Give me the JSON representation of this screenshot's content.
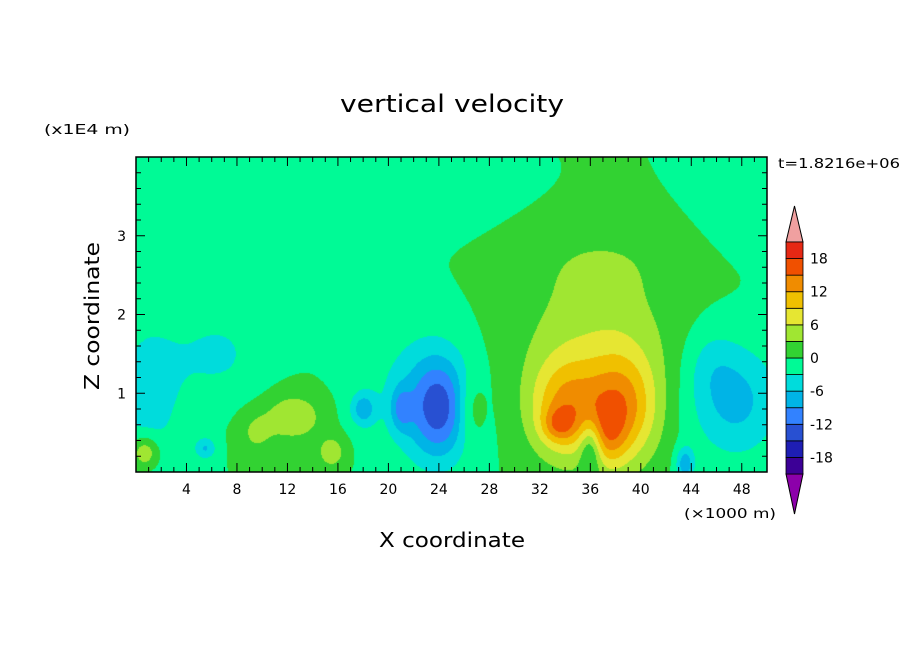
{
  "chart_data": {
    "type": "heatmap",
    "title": "vertical velocity",
    "time_label": "t=1.8216e+06",
    "xlabel": "X coordinate",
    "ylabel": "Z coordinate",
    "x_unit": "(×1000 m)",
    "y_unit": "(x1E4 m)",
    "xlim": [
      0,
      50
    ],
    "ylim": [
      0,
      4
    ],
    "x_ticks": [
      4,
      8,
      12,
      16,
      20,
      24,
      28,
      32,
      36,
      40,
      44,
      48
    ],
    "y_ticks": [
      1,
      2,
      3
    ],
    "colorbar": {
      "levels": [
        -21,
        -18,
        -15,
        -12,
        -9,
        -6,
        -3,
        0,
        3,
        6,
        9,
        12,
        15,
        18,
        21
      ],
      "tick_labels": [
        18,
        12,
        6,
        0,
        -6,
        -12,
        -18
      ],
      "colors": [
        "#8c00aa",
        "#3c0096",
        "#1e1eb4",
        "#2850d2",
        "#3282ff",
        "#00b4e6",
        "#00dcdc",
        "#00fa96",
        "#32d232",
        "#a0e632",
        "#e6e632",
        "#f0c000",
        "#f08c00",
        "#f05000",
        "#e62814",
        "#f0a0a0"
      ]
    },
    "field": {
      "background": 0,
      "features": [
        {
          "x": 5,
          "z": 3.6,
          "sx": 6,
          "sz": 0.35,
          "w": -1.6
        },
        {
          "x": 16,
          "z": 3.4,
          "sx": 8,
          "sz": 0.3,
          "w": -1.4
        },
        {
          "x": 48,
          "z": 3.6,
          "sx": 2.5,
          "sz": 0.5,
          "w": -1.6
        },
        {
          "x": 9,
          "z": 2.7,
          "sx": 2,
          "sz": 0.3,
          "w": -1.2
        },
        {
          "x": 15,
          "z": 2.75,
          "sx": 3,
          "sz": 0.2,
          "w": -1.1
        },
        {
          "x": 37,
          "z": 2.7,
          "sx": 4.5,
          "sz": 0.35,
          "w": 1.8
        },
        {
          "x": 36.5,
          "z": 1.7,
          "sx": 4.5,
          "sz": 0.7,
          "w": 4.5
        },
        {
          "x": 34,
          "z": 0.8,
          "sx": 2,
          "sz": 0.45,
          "w": 11
        },
        {
          "x": 38.5,
          "z": 0.8,
          "sx": 2,
          "sz": 0.5,
          "w": 12
        },
        {
          "x": 33.5,
          "z": 0.6,
          "sx": 0.9,
          "sz": 0.15,
          "w": 6
        },
        {
          "x": 37.5,
          "z": 0.45,
          "sx": 1,
          "sz": 0.3,
          "w": 5
        },
        {
          "x": 36,
          "z": 0.3,
          "sx": 0.6,
          "sz": 0.25,
          "w": -7
        },
        {
          "x": 24,
          "z": 0.8,
          "sx": 1.6,
          "sz": 0.45,
          "w": -11
        },
        {
          "x": 22.5,
          "z": 1.0,
          "sx": 3,
          "sz": 0.6,
          "w": -4
        },
        {
          "x": 21,
          "z": 0.8,
          "sx": 0.6,
          "sz": 0.2,
          "w": -6
        },
        {
          "x": 18,
          "z": 0.8,
          "sx": 0.7,
          "sz": 0.15,
          "w": -7
        },
        {
          "x": 6.5,
          "z": 1.5,
          "sx": 2.5,
          "sz": 0.4,
          "w": -3.5
        },
        {
          "x": 1,
          "z": 1.0,
          "sx": 2,
          "sz": 0.7,
          "w": -4.5
        },
        {
          "x": 47.5,
          "z": 0.9,
          "sx": 2.5,
          "sz": 0.5,
          "w": -7
        },
        {
          "x": 45.5,
          "z": 1.4,
          "sx": 1.5,
          "sz": 0.35,
          "w": -2.5
        },
        {
          "x": 12.5,
          "z": 0.7,
          "sx": 1.5,
          "sz": 0.2,
          "w": 6
        },
        {
          "x": 15.5,
          "z": 0.25,
          "sx": 0.8,
          "sz": 0.15,
          "w": 5
        },
        {
          "x": 0.7,
          "z": 0.25,
          "sx": 0.8,
          "sz": 0.15,
          "w": 7
        },
        {
          "x": 5.5,
          "z": 0.3,
          "sx": 0.6,
          "sz": 0.1,
          "w": -6
        },
        {
          "x": 9.5,
          "z": 0.5,
          "sx": 1,
          "sz": 0.2,
          "w": 3.5
        },
        {
          "x": 43.5,
          "z": 0.1,
          "sx": 0.5,
          "sz": 0.15,
          "w": -8
        },
        {
          "x": 26.5,
          "z": 0.8,
          "sx": 0.8,
          "sz": 0.3,
          "w": 4
        }
      ]
    }
  }
}
